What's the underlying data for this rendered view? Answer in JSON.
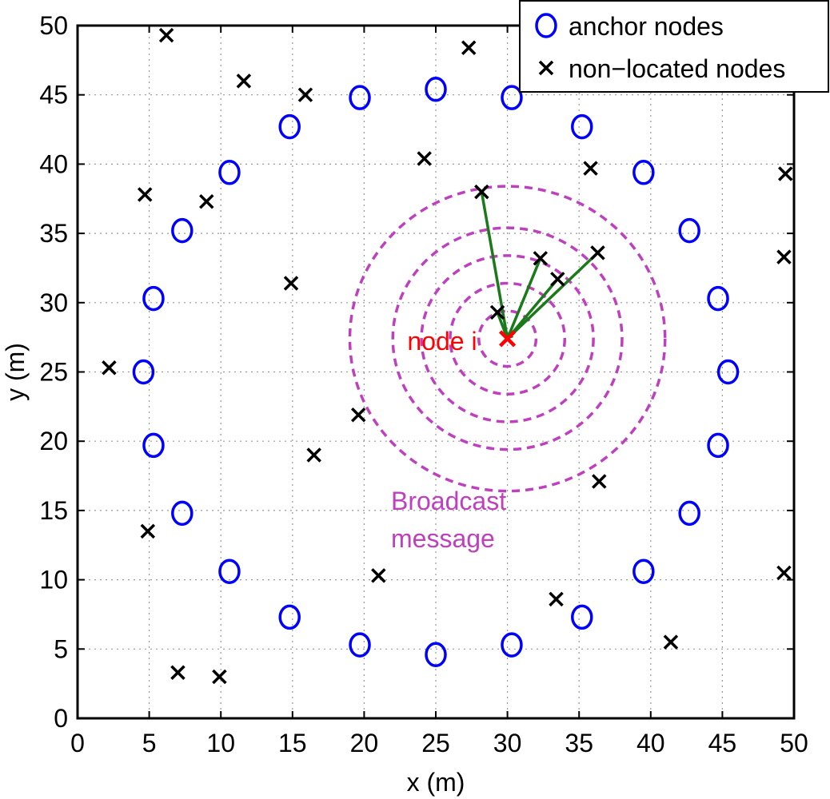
{
  "chart_data": {
    "type": "scatter",
    "title": "",
    "xlabel": "x (m)",
    "ylabel": "y (m)",
    "xlim": [
      0,
      50
    ],
    "ylim": [
      0,
      50
    ],
    "xticks": [
      0,
      5,
      10,
      15,
      20,
      25,
      30,
      35,
      40,
      45,
      50
    ],
    "yticks": [
      0,
      5,
      10,
      15,
      20,
      25,
      30,
      35,
      40,
      45,
      50
    ],
    "grid": true,
    "legend_position": "top-right",
    "colors": {
      "anchor": "#0000ff",
      "nonlocated": "#000000",
      "node_i": "#ff0000",
      "broadcast": "#bf40bf",
      "links": "#1a7a1a"
    },
    "series": [
      {
        "name": "anchor nodes",
        "marker": "circle",
        "points": [
          [
            25.0,
            45.4
          ],
          [
            30.3,
            44.8
          ],
          [
            35.2,
            42.7
          ],
          [
            39.5,
            39.4
          ],
          [
            42.7,
            35.2
          ],
          [
            44.7,
            30.3
          ],
          [
            45.4,
            25.0
          ],
          [
            44.7,
            19.7
          ],
          [
            42.7,
            14.8
          ],
          [
            39.5,
            10.6
          ],
          [
            35.2,
            7.3
          ],
          [
            30.3,
            5.3
          ],
          [
            25.0,
            4.6
          ],
          [
            19.7,
            5.3
          ],
          [
            14.8,
            7.3
          ],
          [
            10.6,
            10.6
          ],
          [
            7.3,
            14.8
          ],
          [
            5.3,
            19.7
          ],
          [
            4.6,
            25.0
          ],
          [
            5.3,
            30.3
          ],
          [
            7.3,
            35.2
          ],
          [
            10.6,
            39.4
          ],
          [
            14.8,
            42.7
          ],
          [
            19.7,
            44.8
          ]
        ]
      },
      {
        "name": "non−located nodes",
        "marker": "x",
        "points": [
          [
            6.2,
            49.3
          ],
          [
            11.6,
            46.0
          ],
          [
            15.9,
            45.0
          ],
          [
            27.3,
            48.4
          ],
          [
            24.2,
            40.4
          ],
          [
            35.8,
            39.7
          ],
          [
            49.4,
            39.3
          ],
          [
            4.7,
            37.8
          ],
          [
            9.0,
            37.3
          ],
          [
            28.2,
            38.0
          ],
          [
            32.3,
            33.2
          ],
          [
            36.3,
            33.6
          ],
          [
            33.5,
            31.7
          ],
          [
            49.3,
            33.3
          ],
          [
            14.9,
            31.4
          ],
          [
            29.3,
            29.3
          ],
          [
            2.2,
            25.3
          ],
          [
            19.6,
            21.9
          ],
          [
            16.5,
            19.0
          ],
          [
            36.4,
            17.1
          ],
          [
            4.9,
            13.5
          ],
          [
            21.0,
            10.3
          ],
          [
            33.4,
            8.6
          ],
          [
            49.3,
            10.5
          ],
          [
            41.4,
            5.5
          ],
          [
            7.0,
            3.3
          ],
          [
            9.9,
            3.0
          ]
        ]
      }
    ],
    "node_i": {
      "label": "node i",
      "point": [
        30.0,
        27.4
      ]
    },
    "broadcast": {
      "label_line1": "Broadcast",
      "label_line2": "message",
      "radii": [
        2.0,
        4.0,
        6.0,
        8.0,
        11.0
      ]
    },
    "links_to": [
      [
        28.2,
        38.0
      ],
      [
        32.3,
        33.2
      ],
      [
        33.5,
        31.7
      ],
      [
        36.3,
        33.6
      ],
      [
        29.3,
        29.3
      ]
    ]
  }
}
